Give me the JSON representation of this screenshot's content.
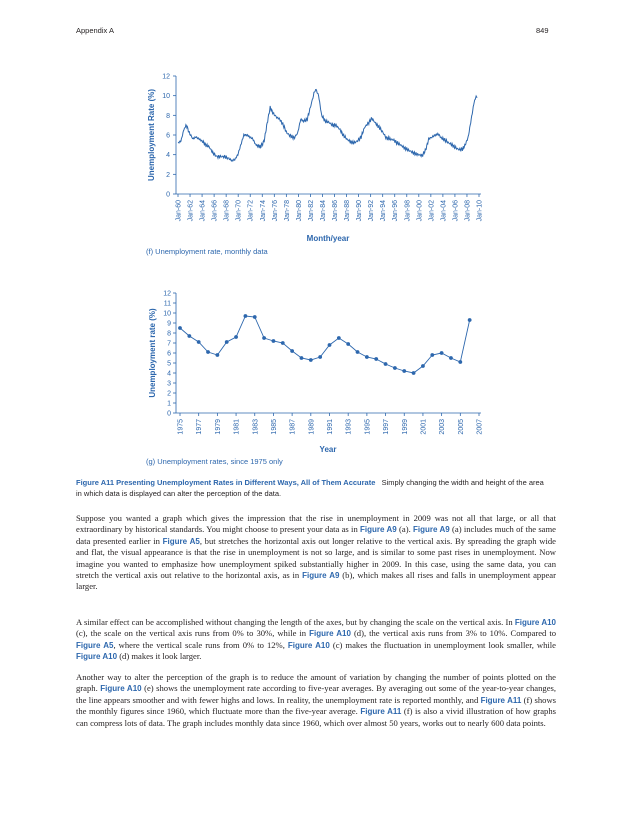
{
  "header": {
    "left": "Appendix A",
    "right": "849"
  },
  "chart_data": [
    {
      "type": "line",
      "caption": "(f) Unemployment rate, monthly data",
      "xlabel": "Month/year",
      "ylabel": "Unemployment Rate (%)",
      "ylim": [
        0,
        12
      ],
      "yticks": [
        "0",
        "2",
        "4",
        "6",
        "8",
        "10",
        "12"
      ],
      "xticks": [
        "Jan-60",
        "Jan-62",
        "Jan-64",
        "Jan-66",
        "Jan-68",
        "Jan-70",
        "Jan-72",
        "Jan-74",
        "Jan-76",
        "Jan-78",
        "Jan-80",
        "Jan-82",
        "Jan-84",
        "Jan-86",
        "Jan-88",
        "Jan-90",
        "Jan-92",
        "Jan-94",
        "Jan-96",
        "Jan-98",
        "Jan-00",
        "Jan-02",
        "Jan-04",
        "Jan-06",
        "Jan-08",
        "Jan-10"
      ],
      "series": [
        {
          "points": [
            [
              1960.0,
              5.2
            ],
            [
              1960.5,
              5.4
            ],
            [
              1961.0,
              6.6
            ],
            [
              1961.4,
              7.0
            ],
            [
              1961.9,
              6.2
            ],
            [
              1962.5,
              5.6
            ],
            [
              1963.0,
              5.8
            ],
            [
              1963.5,
              5.6
            ],
            [
              1964.0,
              5.4
            ],
            [
              1964.6,
              5.0
            ],
            [
              1965.2,
              4.8
            ],
            [
              1965.8,
              4.2
            ],
            [
              1966.5,
              3.8
            ],
            [
              1967.2,
              3.8
            ],
            [
              1967.8,
              3.8
            ],
            [
              1968.5,
              3.6
            ],
            [
              1969.0,
              3.4
            ],
            [
              1969.5,
              3.5
            ],
            [
              1970.0,
              4.0
            ],
            [
              1970.5,
              5.0
            ],
            [
              1971.0,
              6.0
            ],
            [
              1971.5,
              6.0
            ],
            [
              1972.0,
              5.8
            ],
            [
              1972.5,
              5.6
            ],
            [
              1973.0,
              5.0
            ],
            [
              1973.8,
              4.8
            ],
            [
              1974.4,
              5.4
            ],
            [
              1974.9,
              7.2
            ],
            [
              1975.4,
              8.8
            ],
            [
              1975.9,
              8.2
            ],
            [
              1976.5,
              7.8
            ],
            [
              1977.0,
              7.6
            ],
            [
              1977.6,
              7.0
            ],
            [
              1978.2,
              6.2
            ],
            [
              1978.8,
              5.9
            ],
            [
              1979.4,
              5.7
            ],
            [
              1980.0,
              6.2
            ],
            [
              1980.5,
              7.6
            ],
            [
              1981.0,
              7.4
            ],
            [
              1981.6,
              7.6
            ],
            [
              1982.2,
              9.0
            ],
            [
              1982.8,
              10.4
            ],
            [
              1983.0,
              10.7
            ],
            [
              1983.5,
              10.0
            ],
            [
              1984.0,
              8.0
            ],
            [
              1984.6,
              7.4
            ],
            [
              1985.2,
              7.3
            ],
            [
              1985.8,
              7.0
            ],
            [
              1986.4,
              7.0
            ],
            [
              1987.0,
              6.6
            ],
            [
              1987.6,
              6.0
            ],
            [
              1988.2,
              5.6
            ],
            [
              1988.8,
              5.3
            ],
            [
              1989.4,
              5.2
            ],
            [
              1990.0,
              5.4
            ],
            [
              1990.6,
              5.8
            ],
            [
              1991.2,
              6.8
            ],
            [
              1991.8,
              7.2
            ],
            [
              1992.4,
              7.7
            ],
            [
              1993.0,
              7.2
            ],
            [
              1993.6,
              6.8
            ],
            [
              1994.2,
              6.3
            ],
            [
              1994.8,
              5.7
            ],
            [
              1995.4,
              5.6
            ],
            [
              1996.0,
              5.5
            ],
            [
              1996.6,
              5.2
            ],
            [
              1997.2,
              5.0
            ],
            [
              1997.8,
              4.7
            ],
            [
              1998.4,
              4.5
            ],
            [
              1999.0,
              4.3
            ],
            [
              1999.6,
              4.1
            ],
            [
              2000.2,
              4.0
            ],
            [
              2000.8,
              3.9
            ],
            [
              2001.4,
              4.5
            ],
            [
              2001.9,
              5.6
            ],
            [
              2002.5,
              5.8
            ],
            [
              2003.0,
              6.0
            ],
            [
              2003.5,
              6.1
            ],
            [
              2004.0,
              5.7
            ],
            [
              2004.6,
              5.5
            ],
            [
              2005.2,
              5.2
            ],
            [
              2005.8,
              5.0
            ],
            [
              2006.4,
              4.7
            ],
            [
              2007.0,
              4.5
            ],
            [
              2007.6,
              4.6
            ],
            [
              2008.0,
              5.0
            ],
            [
              2008.5,
              5.8
            ],
            [
              2009.0,
              7.6
            ],
            [
              2009.5,
              9.4
            ],
            [
              2009.9,
              10.0
            ],
            [
              2010.0,
              9.8
            ]
          ]
        }
      ]
    },
    {
      "type": "line",
      "caption": "(g) Unemployment rates, since 1975 only",
      "xlabel": "Year",
      "ylabel": "Unemployment rate (%)",
      "ylim": [
        0,
        12
      ],
      "yticks": [
        "0",
        "1",
        "2",
        "3",
        "4",
        "5",
        "6",
        "7",
        "8",
        "9",
        "10",
        "11",
        "12"
      ],
      "xticks": [
        "1975",
        "1977",
        "1979",
        "1981",
        "1983",
        "1985",
        "1987",
        "1989",
        "1991",
        "1993",
        "1995",
        "1997",
        "1999",
        "2001",
        "2003",
        "2005",
        "2007"
      ],
      "series": [
        {
          "x": [
            1975,
            1976,
            1977,
            1978,
            1979,
            1980,
            1981,
            1982,
            1983,
            1984,
            1985,
            1986,
            1987,
            1988,
            1989,
            1990,
            1991,
            1992,
            1993,
            1994,
            1995,
            1996,
            1997,
            1998,
            1999,
            2000,
            2001,
            2002,
            2003,
            2004,
            2005,
            2006
          ],
          "y": [
            8.5,
            7.7,
            7.1,
            6.1,
            5.8,
            7.1,
            7.6,
            9.7,
            9.6,
            7.5,
            7.2,
            7.0,
            6.2,
            5.5,
            5.3,
            5.6,
            6.8,
            7.5,
            6.9,
            6.1,
            5.6,
            5.4,
            4.9,
            4.5,
            4.2,
            4.0,
            4.7,
            5.8,
            6.0,
            5.5,
            5.1,
            9.3
          ]
        }
      ]
    }
  ],
  "caption": {
    "label": "Figure A11 Presenting Unemployment Rates in Different Ways, All of Them Accurate",
    "text": "Simply changing the width and height of the area in which data is displayed can alter the perception of the data."
  },
  "body": {
    "p1": {
      "t1": "Suppose you wanted a graph which gives the impression that the rise in unemployment in 2009 was not all that large, or all that extraordinary by historical standards. You might choose to present your data as in ",
      "r1": "Figure A9",
      "t2": " (a). ",
      "r2": "Figure A9",
      "t3": " (a) includes much of the same data presented earlier in ",
      "r3": "Figure A5",
      "t4": ", but stretches the horizontal axis out longer relative to the vertical axis. By spreading the graph wide and flat, the visual appearance is that the rise in unemployment is not so large, and is similar to some past rises in unemployment. Now imagine you wanted to emphasize how unemployment spiked substantially higher in 2009. In this case, using the same data, you can stretch the vertical axis out relative to the horizontal axis, as in ",
      "r4": "Figure A9",
      "t5": " (b), which makes all rises and falls in unemployment appear larger."
    },
    "p2": {
      "t1": "A similar effect can be accomplished without changing the length of the axes, but by changing the scale on the vertical axis. In ",
      "r1": "Figure A10",
      "t2": " (c), the scale on the vertical axis runs from 0% to 30%, while in ",
      "r2": "Figure A10",
      "t3": " (d), the vertical axis runs from 3% to 10%. Compared to ",
      "r3": "Figure A5",
      "t4": ", where the vertical scale runs from 0% to 12%, ",
      "r4": "Figure A10",
      "t5": " (c) makes the fluctuation in unemployment look smaller, while ",
      "r5": "Figure A10",
      "t6": " (d) makes it look larger."
    },
    "p3": {
      "t1": "Another way to alter the perception of the graph is to reduce the amount of variation by changing the number of points plotted on the graph. ",
      "r1": "Figure A10",
      "t2": " (e) shows the unemployment rate according to five-year averages. By averaging out some of the year-to-year changes, the line appears smoother and with fewer highs and lows. In reality, the unemployment rate is reported monthly, and ",
      "r2": "Figure A11",
      "t3": " (f) shows the monthly figures since 1960, which fluctuate more than the five-year average. ",
      "r3": "Figure A11",
      "t4": " (f) is also a vivid illustration of how graphs can compress lots of data. The graph includes monthly data since 1960, which over almost 50 years, works out to nearly 600 data points."
    }
  }
}
